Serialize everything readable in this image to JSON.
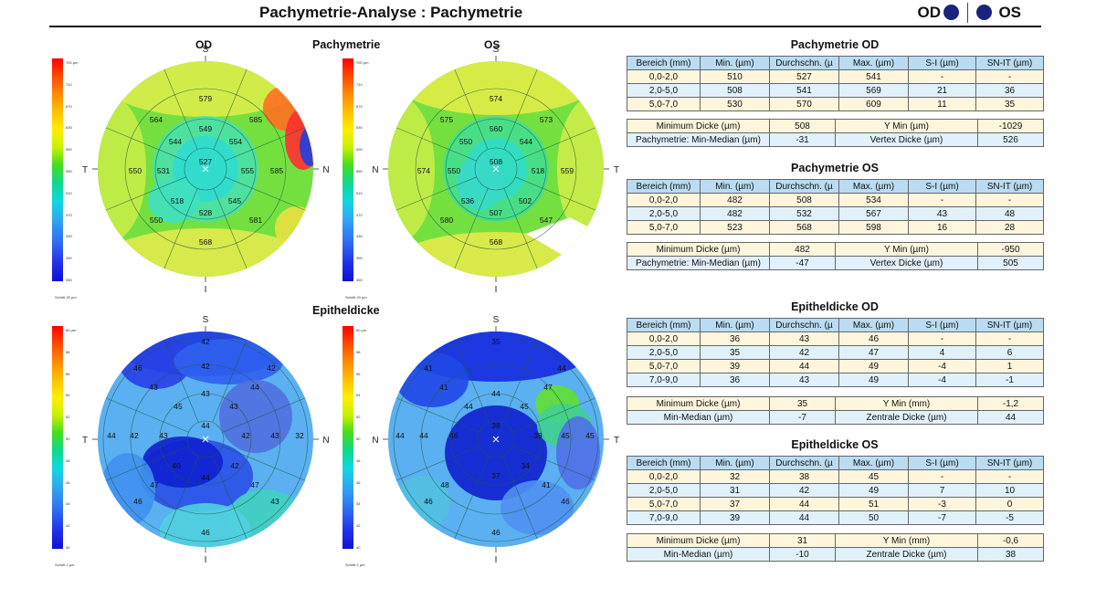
{
  "header": {
    "title": "Pachymetrie-Analyse : Pachymetrie",
    "od": "OD",
    "os": "OS"
  },
  "colors": {
    "eye_dot": "#1a237e",
    "table_header": "#b9dcf2",
    "row_yellow": "#fdf6dd",
    "row_blue": "#e1f1fb"
  },
  "maps": {
    "pachy_title": "Pachymetrie",
    "epi_title": "Epitheldicke",
    "od_label": "OD",
    "os_label": "OS",
    "pachy_scale": {
      "labels": [
        "700 µm",
        "710",
        "670",
        "630",
        "590",
        "550",
        "510",
        "470",
        "430",
        "390",
        "350"
      ],
      "footer": "Schritt 20 µm"
    },
    "epi_scale": {
      "labels": [
        "60 µm",
        "58",
        "56",
        "54",
        "52",
        "50",
        "48",
        "46",
        "44",
        "42",
        "40"
      ],
      "footer": "Schritt 2 µm"
    },
    "pachy_od": {
      "compass": {
        "top": "S",
        "bottom": "I",
        "left": "T",
        "right": "N"
      },
      "values": [
        "579",
        "564",
        "585",
        "549",
        "544",
        "554",
        "527",
        "550",
        "531",
        "555",
        "585",
        "518",
        "545",
        "550",
        "528",
        "581",
        "568"
      ]
    },
    "pachy_os": {
      "compass": {
        "top": "S",
        "bottom": "I",
        "left": "N",
        "right": "T"
      },
      "values": [
        "574",
        "575",
        "573",
        "560",
        "550",
        "544",
        "508",
        "574",
        "550",
        "518",
        "559",
        "536",
        "502",
        "580",
        "507",
        "547",
        "568"
      ]
    },
    "epi_od": {
      "compass": {
        "top": "S",
        "bottom": "I",
        "left": "T",
        "right": "N"
      },
      "values": [
        "42",
        "46",
        "42",
        "42",
        "43",
        "44",
        "45",
        "43",
        "43",
        "44",
        "44",
        "42",
        "43",
        "42",
        "43",
        "32",
        "40",
        "44",
        "42",
        "47",
        "47",
        "43",
        "46",
        "46"
      ]
    },
    "epi_os": {
      "compass": {
        "top": "S",
        "bottom": "I",
        "left": "N",
        "right": "T"
      },
      "values": [
        "35",
        "41",
        "41",
        "44",
        "47",
        "44",
        "44",
        "45",
        "44",
        "44",
        "46",
        "38",
        "38",
        "45",
        "45",
        "48",
        "37",
        "34",
        "41",
        "46",
        "46",
        "46"
      ]
    }
  },
  "tables": {
    "pachy_od": {
      "title": "Pachymetrie OD",
      "header": [
        "Bereich (mm)",
        "Min. (µm)",
        "Durchschn. (µ",
        "Max. (µm)",
        "S-I (µm)",
        "SN-IT (µm)"
      ],
      "rows": [
        [
          "0,0-2,0",
          "510",
          "527",
          "541",
          "-",
          "-"
        ],
        [
          "2,0-5,0",
          "508",
          "541",
          "569",
          "21",
          "36"
        ],
        [
          "5,0-7,0",
          "530",
          "570",
          "609",
          "11",
          "35"
        ]
      ],
      "stats": [
        [
          "Minimum Dicke (µm)",
          "508",
          "Y Min (µm)",
          "-1029"
        ],
        [
          "Pachymetrie: Min-Median (µm)",
          "-31",
          "Vertex Dicke (µm)",
          "526"
        ]
      ]
    },
    "pachy_os": {
      "title": "Pachymetrie OS",
      "header": [
        "Bereich (mm)",
        "Min. (µm)",
        "Durchschn. (µ",
        "Max. (µm)",
        "S-I (µm)",
        "SN-IT (µm)"
      ],
      "rows": [
        [
          "0,0-2,0",
          "482",
          "508",
          "534",
          "-",
          "-"
        ],
        [
          "2,0-5,0",
          "482",
          "532",
          "567",
          "43",
          "48"
        ],
        [
          "5,0-7,0",
          "523",
          "568",
          "598",
          "16",
          "28"
        ]
      ],
      "stats": [
        [
          "Minimum Dicke (µm)",
          "482",
          "Y Min (µm)",
          "-950"
        ],
        [
          "Pachymetrie: Min-Median (µm)",
          "-47",
          "Vertex Dicke (µm)",
          "505"
        ]
      ]
    },
    "epi_od": {
      "title": "Epitheldicke OD",
      "header": [
        "Bereich (mm)",
        "Min. (µm)",
        "Durchschn. (µ",
        "Max. (µm)",
        "S-I (µm)",
        "SN-IT (µm)"
      ],
      "rows": [
        [
          "0,0-2,0",
          "36",
          "43",
          "46",
          "-",
          "-"
        ],
        [
          "2,0-5,0",
          "35",
          "42",
          "47",
          "4",
          "6"
        ],
        [
          "5,0-7,0",
          "39",
          "44",
          "49",
          "-4",
          "1"
        ],
        [
          "7,0-9,0",
          "36",
          "43",
          "49",
          "-4",
          "-1"
        ]
      ],
      "stats": [
        [
          "Minimum Dicke (µm)",
          "35",
          "Y Min (mm)",
          "-1,2"
        ],
        [
          "Min-Median (µm)",
          "-7",
          "Zentrale Dicke (µm)",
          "44"
        ]
      ]
    },
    "epi_os": {
      "title": "Epitheldicke OS",
      "header": [
        "Bereich (mm)",
        "Min. (µm)",
        "Durchschn. (µ",
        "Max. (µm)",
        "S-I (µm)",
        "SN-IT (µm)"
      ],
      "rows": [
        [
          "0,0-2,0",
          "32",
          "38",
          "45",
          "-",
          "-"
        ],
        [
          "2,0-5,0",
          "31",
          "42",
          "49",
          "7",
          "10"
        ],
        [
          "5,0-7,0",
          "37",
          "44",
          "51",
          "-3",
          "0"
        ],
        [
          "7,0-9,0",
          "39",
          "44",
          "50",
          "-7",
          "-5"
        ]
      ],
      "stats": [
        [
          "Minimum Dicke (µm)",
          "31",
          "Y Min (mm)",
          "-0,6"
        ],
        [
          "Min-Median (µm)",
          "-10",
          "Zentrale Dicke (µm)",
          "38"
        ]
      ]
    }
  }
}
